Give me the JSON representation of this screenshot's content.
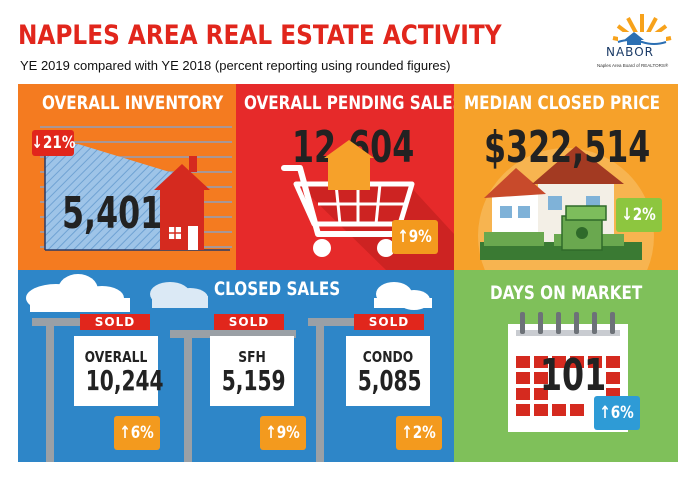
{
  "header": {
    "title": "NAPLES AREA REAL ESTATE ACTIVITY",
    "subtitle": "YE 2019 compared with YE 2018 (percent reporting using rounded figures)",
    "logo_text": "NABOR",
    "logo_subtext": "Naples Area Board of REALTORS®"
  },
  "inventory": {
    "title": "OVERALL INVENTORY",
    "value": "5,401",
    "change": "21%",
    "direction": "down"
  },
  "pending": {
    "title": "OVERALL PENDING SALES",
    "value": "12,604",
    "change": "9%",
    "direction": "up"
  },
  "median": {
    "title": "MEDIAN CLOSED PRICE",
    "value": "$322,514",
    "change": "2%",
    "direction": "down"
  },
  "closed": {
    "title": "CLOSED SALES",
    "signs": [
      {
        "sold": "SOLD",
        "label": "OVERALL",
        "value": "10,244",
        "change": "6%",
        "direction": "up"
      },
      {
        "sold": "SOLD",
        "label": "SFH",
        "value": "5,159",
        "change": "9%",
        "direction": "up"
      },
      {
        "sold": "SOLD",
        "label": "CONDO",
        "value": "5,085",
        "change": "2%",
        "direction": "up"
      }
    ]
  },
  "dom": {
    "title": "DAYS ON MARKET",
    "value": "101",
    "change": "6%",
    "direction": "up"
  },
  "arrows": {
    "up": "↑",
    "down": "↓"
  },
  "colors": {
    "red": "#e1261c",
    "orange": "#f47b20",
    "light_orange": "#f6a12a",
    "blue": "#2e86c8",
    "green": "#7fc05a",
    "badge_orange": "#f39a1e",
    "badge_blue": "#2e9bd6",
    "badge_green": "#8dc63f",
    "badge_red": "#e1261c"
  }
}
